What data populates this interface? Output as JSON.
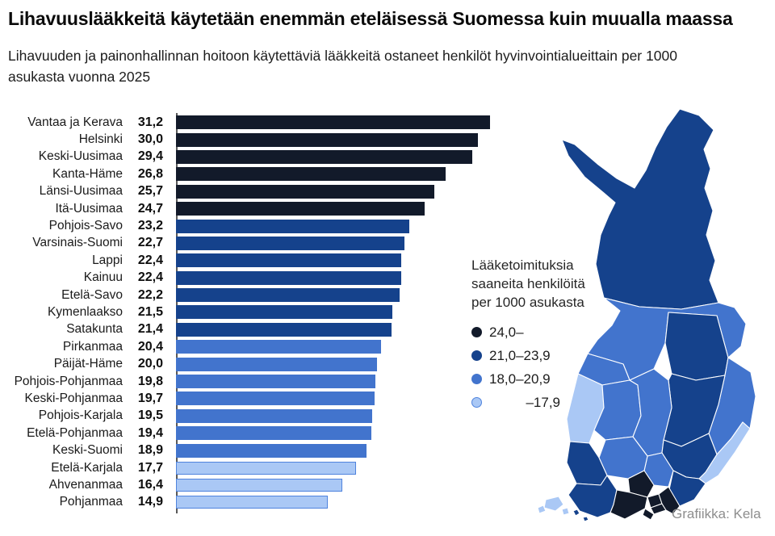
{
  "title": "Lihavuuslääkkeitä käytetään enemmän eteläisessä Suomessa kuin muualla maassa",
  "subtitle": "Lihavuuden ja painonhallinnan hoitoon käytettäviä lääkkeitä ostaneet henkilöt hyvinvointialueittain per 1000 asukasta vuonna 2025",
  "credit": "Grafiikka: Kela",
  "palette": {
    "cat_24_plus": "#121a2a",
    "cat_21_239": "#15428c",
    "cat_18_209": "#4274cd",
    "cat_under_18_fill": "#aac8f5",
    "cat_under_18_stroke": "#4f83dd",
    "axis_line": "#595959",
    "map_border": "#ffffff",
    "credit_text": "#8e8e8e"
  },
  "chart_data": {
    "type": "bar",
    "orientation": "horizontal",
    "title": "Lihavuuslääkkeitä käytetään enemmän eteläisessä Suomessa kuin muualla maassa",
    "xlabel": "",
    "ylabel": "",
    "xlim": [
      0,
      31.2
    ],
    "grid": false,
    "value_format": "decimal-comma",
    "categories": [
      "Vantaa ja Kerava",
      "Helsinki",
      "Keski-Uusimaa",
      "Kanta-Häme",
      "Länsi-Uusimaa",
      "Itä-Uusimaa",
      "Pohjois-Savo",
      "Varsinais-Suomi",
      "Lappi",
      "Kainuu",
      "Etelä-Savo",
      "Kymenlaakso",
      "Satakunta",
      "Pirkanmaa",
      "Päijät-Häme",
      "Pohjois-Pohjanmaa",
      "Keski-Pohjanmaa",
      "Pohjois-Karjala",
      "Etelä-Pohjanmaa",
      "Keski-Suomi",
      "Etelä-Karjala",
      "Ahvenanmaa",
      "Pohjanmaa"
    ],
    "values": [
      31.2,
      30.0,
      29.4,
      26.8,
      25.7,
      24.7,
      23.2,
      22.7,
      22.4,
      22.4,
      22.2,
      21.5,
      21.4,
      20.4,
      20.0,
      19.8,
      19.7,
      19.5,
      19.4,
      18.9,
      17.7,
      16.4,
      14.9
    ],
    "value_labels": [
      "31,2",
      "30,0",
      "29,4",
      "26,8",
      "25,7",
      "24,7",
      "23,2",
      "22,7",
      "22,4",
      "22,4",
      "22,2",
      "21,5",
      "21,4",
      "20,4",
      "20,0",
      "19,8",
      "19,7",
      "19,5",
      "19,4",
      "18,9",
      "17,7",
      "16,4",
      "14,9"
    ],
    "color_bins": [
      {
        "label": "24,0–",
        "min": 24.0
      },
      {
        "label": "21,0–23,9",
        "min": 21.0,
        "max": 23.9
      },
      {
        "label": "18,0–20,9",
        "min": 18.0,
        "max": 20.9
      },
      {
        "label": "–17,9",
        "max": 17.9
      }
    ]
  },
  "legend": {
    "title_lines": [
      "Lääketoimituksia",
      "saaneita henkilöitä",
      "per 1000 asukasta"
    ],
    "items": [
      {
        "label": "24,0–"
      },
      {
        "label": "21,0–23,9"
      },
      {
        "label": "18,0–20,9"
      },
      {
        "label": "–17,9"
      }
    ]
  },
  "map": {
    "name": "finland-welfare-regions-choropleth",
    "regions": [
      "Lappi",
      "Pohjois-Pohjanmaa",
      "Kainuu",
      "Pohjois-Karjala",
      "Pohjois-Savo",
      "Keski-Pohjanmaa",
      "Pohjanmaa",
      "Etelä-Pohjanmaa",
      "Keski-Suomi",
      "Etelä-Savo",
      "Etelä-Karjala",
      "Kymenlaakso",
      "Päijät-Häme",
      "Pirkanmaa",
      "Satakunta",
      "Kanta-Häme",
      "Varsinais-Suomi",
      "Länsi-Uusimaa",
      "Keski-Uusimaa",
      "Vantaa ja Kerava",
      "Helsinki",
      "Itä-Uusimaa",
      "Ahvenanmaa"
    ]
  }
}
